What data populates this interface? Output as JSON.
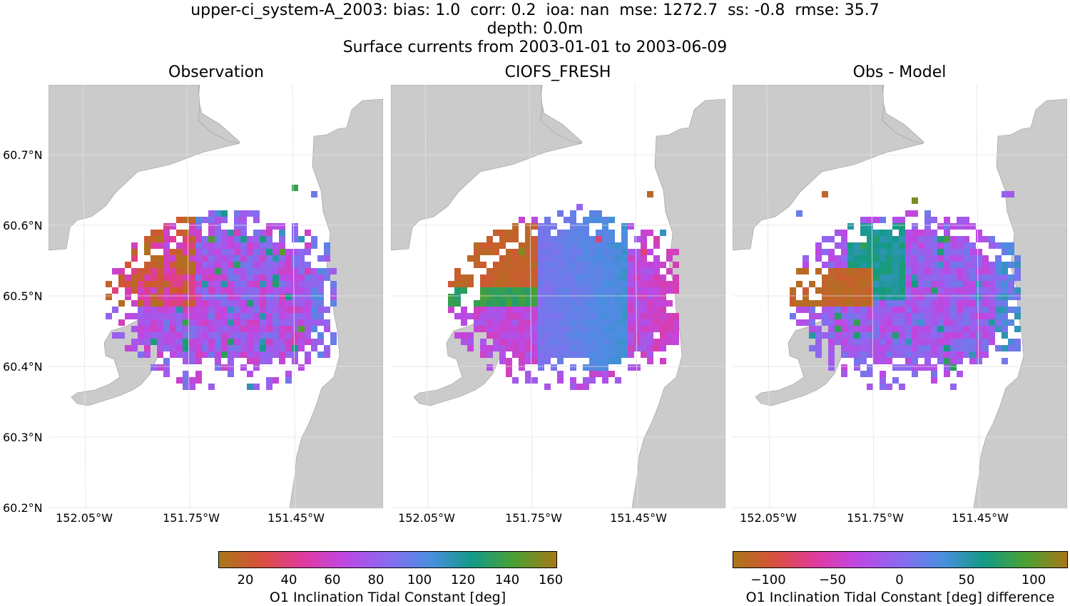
{
  "figure": {
    "title_lines": [
      "upper-ci_system-A_2003: bias: 1.0  corr: 0.2  ioa: nan  mse: 1272.7  ss: -0.8  rmse: 35.7",
      "depth: 0.0m",
      "Surface currents from 2003-01-01 to 2003-06-09"
    ]
  },
  "panels": [
    {
      "title": "Observation"
    },
    {
      "title": "CIOFS_FRESH"
    },
    {
      "title": "Obs - Model"
    }
  ],
  "axes": {
    "lat_labels": [
      "60.7°N",
      "60.6°N",
      "60.5°N",
      "60.4°N",
      "60.3°N",
      "60.2°N"
    ],
    "lon_labels": [
      "152.05°W",
      "151.75°W",
      "151.45°W"
    ]
  },
  "colorbars": [
    {
      "label": "O1 Inclination Tidal Constant [deg]",
      "ticks": [
        "20",
        "40",
        "60",
        "80",
        "100",
        "120",
        "140",
        "160"
      ],
      "range": [
        7,
        162
      ]
    },
    {
      "label": "O1 Inclination Tidal Constant [deg] difference",
      "ticks": [
        "−100",
        "−50",
        "0",
        "50",
        "100"
      ],
      "range": [
        -125,
        125
      ]
    }
  ],
  "colors": {
    "land": "#cbcbcb",
    "grid": "#e2e2e2",
    "colormap": [
      "#a87818",
      "#d8503c",
      "#e03aa0",
      "#bd48e4",
      "#8a6af0",
      "#4a8ee0",
      "#139a86",
      "#4aa032",
      "#8a8818"
    ]
  }
}
